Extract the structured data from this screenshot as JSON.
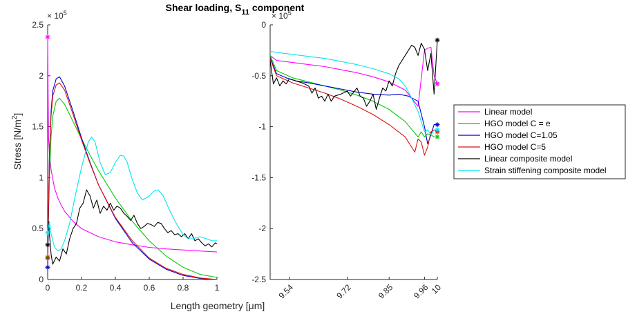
{
  "title": "Shear loading, S",
  "title_sub": "11",
  "title_tail": " component",
  "chart_data": [
    {
      "type": "line",
      "ylabel": "Stress [N/m",
      "ylabel_sup": "2",
      "ylabel_tail": "]",
      "xlabel": "Length geometry [",
      "xlabel_mu": "μ",
      "xlabel_tail": "m]",
      "xlim": [
        0,
        1
      ],
      "ylim": [
        0,
        250000
      ],
      "exponent_label": "× 10",
      "exponent_power": "5",
      "xticks": [
        0,
        0.2,
        0.4,
        0.6,
        0.8,
        1
      ],
      "xtick_labels": [
        "0",
        "0.2",
        "0.4",
        "0.6",
        "0.8",
        "1"
      ],
      "yticks": [
        0,
        50000,
        100000,
        150000,
        200000,
        250000
      ],
      "ytick_labels": [
        "0",
        "0.5",
        "1",
        "1.5",
        "2",
        "2.5"
      ],
      "series": [
        {
          "name": "Linear model",
          "color": "#ff00ff",
          "x": [
            0,
            0.005,
            0.01,
            0.02,
            0.04,
            0.06,
            0.08,
            0.1,
            0.15,
            0.2,
            0.3,
            0.4,
            0.5,
            0.6,
            0.7,
            0.8,
            0.9,
            1.0
          ],
          "y": [
            238000,
            140000,
            125000,
            108000,
            90000,
            80000,
            73000,
            67000,
            57000,
            50000,
            42000,
            37000,
            34000,
            31500,
            30000,
            29000,
            28000,
            27000
          ],
          "marker": [
            0,
            238000
          ]
        },
        {
          "name": "HGO model C = e",
          "color": "#00cc00",
          "x": [
            0,
            0.01,
            0.02,
            0.03,
            0.05,
            0.07,
            0.1,
            0.15,
            0.2,
            0.25,
            0.3,
            0.4,
            0.5,
            0.6,
            0.7,
            0.8,
            0.9,
            1.0
          ],
          "y": [
            22000,
            100000,
            140000,
            160000,
            175000,
            178000,
            172000,
            155000,
            138000,
            122000,
            107000,
            80000,
            57000,
            38000,
            23000,
            12000,
            5000,
            2000
          ],
          "marker": [
            0,
            22000
          ]
        },
        {
          "name": "HGO model C=1.05",
          "color": "#0000cc",
          "x": [
            0,
            0.01,
            0.02,
            0.03,
            0.05,
            0.07,
            0.1,
            0.15,
            0.2,
            0.25,
            0.3,
            0.4,
            0.5,
            0.6,
            0.7,
            0.8,
            0.9,
            1.0
          ],
          "y": [
            12000,
            120000,
            165000,
            185000,
            197000,
            199000,
            190000,
            165000,
            139000,
            115000,
            93000,
            60000,
            36000,
            20000,
            10000,
            4000,
            1000,
            0
          ],
          "marker": [
            0,
            12000
          ]
        },
        {
          "name": "HGO model C=5",
          "color": "#dd1111",
          "x": [
            0,
            0.01,
            0.02,
            0.03,
            0.05,
            0.07,
            0.1,
            0.15,
            0.2,
            0.25,
            0.3,
            0.4,
            0.5,
            0.6,
            0.7,
            0.8,
            0.9,
            1.0
          ],
          "y": [
            21000,
            118000,
            160000,
            180000,
            191000,
            193000,
            186000,
            162000,
            137000,
            114000,
            93000,
            61000,
            38000,
            21000,
            11000,
            5000,
            1500,
            0
          ],
          "marker": [
            0,
            21000
          ]
        },
        {
          "name": "Linear composite model",
          "color": "#000000",
          "x": [
            0,
            0.005,
            0.01,
            0.02,
            0.03,
            0.05,
            0.07,
            0.09,
            0.11,
            0.13,
            0.15,
            0.17,
            0.19,
            0.21,
            0.23,
            0.25,
            0.27,
            0.29,
            0.31,
            0.33,
            0.35,
            0.37,
            0.39,
            0.41,
            0.43,
            0.45,
            0.47,
            0.49,
            0.51,
            0.53,
            0.55,
            0.57,
            0.59,
            0.61,
            0.63,
            0.65,
            0.67,
            0.69,
            0.71,
            0.73,
            0.75,
            0.77,
            0.79,
            0.81,
            0.83,
            0.85,
            0.87,
            0.89,
            0.91,
            0.93,
            0.95,
            0.97,
            0.99,
            1.0
          ],
          "y": [
            34000,
            57000,
            45000,
            25000,
            15000,
            22000,
            18000,
            30000,
            25000,
            40000,
            50000,
            55000,
            70000,
            75000,
            88000,
            82000,
            70000,
            78000,
            65000,
            72000,
            68000,
            75000,
            68000,
            72000,
            70000,
            65000,
            62000,
            58000,
            63000,
            55000,
            50000,
            52000,
            55000,
            54000,
            52000,
            56000,
            55000,
            50000,
            46000,
            48000,
            44000,
            45000,
            42000,
            45000,
            40000,
            45000,
            38000,
            40000,
            36000,
            33000,
            35000,
            32000,
            36000,
            35000
          ],
          "marker": [
            0,
            34000
          ]
        },
        {
          "name": "Strain stiffening composite model",
          "color": "#00e5ee",
          "x": [
            0,
            0.01,
            0.02,
            0.04,
            0.06,
            0.08,
            0.1,
            0.13,
            0.16,
            0.2,
            0.24,
            0.26,
            0.28,
            0.31,
            0.34,
            0.37,
            0.4,
            0.43,
            0.45,
            0.47,
            0.5,
            0.53,
            0.56,
            0.6,
            0.63,
            0.65,
            0.68,
            0.72,
            0.76,
            0.8,
            0.83,
            0.86,
            0.9,
            0.94,
            0.97,
            1.0
          ],
          "y": [
            46000,
            57000,
            45000,
            32000,
            28000,
            30000,
            38000,
            55000,
            80000,
            110000,
            135000,
            140000,
            135000,
            115000,
            103000,
            105000,
            115000,
            122000,
            121000,
            115000,
            98000,
            85000,
            78000,
            82000,
            87000,
            88000,
            83000,
            68000,
            55000,
            44000,
            40000,
            40000,
            42000,
            40000,
            38000,
            38000
          ],
          "marker": [
            0,
            46000
          ]
        }
      ]
    },
    {
      "type": "line",
      "xlim": [
        9.48,
        10.0
      ],
      "ylim": [
        -250000,
        0
      ],
      "exponent_label": "× 10",
      "exponent_power": "5",
      "xticks": [
        9.54,
        9.72,
        9.85,
        9.96,
        10.0
      ],
      "xtick_labels": [
        "9.54",
        "9.72",
        "9.85",
        "9.96",
        "10"
      ],
      "yticks": [
        -250000,
        -200000,
        -150000,
        -100000,
        -50000,
        0
      ],
      "ytick_labels": [
        "-2.5",
        "-2",
        "-1.5",
        "-1",
        "-0.5",
        "0"
      ],
      "series": [
        {
          "name": "Linear model",
          "color": "#ff00ff",
          "x": [
            9.48,
            9.5,
            9.55,
            9.6,
            9.65,
            9.7,
            9.75,
            9.8,
            9.85,
            9.9,
            9.94,
            9.96,
            9.97,
            9.98,
            9.99,
            10.0
          ],
          "y": [
            -30000,
            -35000,
            -37000,
            -39000,
            -41000,
            -44000,
            -47000,
            -51000,
            -56000,
            -64000,
            -80000,
            -25000,
            -23000,
            -22000,
            -50000,
            -58000
          ],
          "marker": [
            10.0,
            -58000
          ]
        },
        {
          "name": "HGO model C = e",
          "color": "#00cc00",
          "x": [
            9.48,
            9.5,
            9.55,
            9.6,
            9.65,
            9.7,
            9.75,
            9.8,
            9.85,
            9.9,
            9.94,
            9.95,
            9.96,
            9.97,
            9.98,
            9.99,
            10.0
          ],
          "y": [
            -30000,
            -45000,
            -52000,
            -56000,
            -60000,
            -64000,
            -69000,
            -75000,
            -83000,
            -95000,
            -110000,
            -105000,
            -110000,
            -107000,
            -108000,
            -110000,
            -110000
          ],
          "marker": [
            10.0,
            -110000
          ]
        },
        {
          "name": "HGO model C=1.05",
          "color": "#0000cc",
          "x": [
            9.48,
            9.5,
            9.53,
            9.56,
            9.6,
            9.65,
            9.7,
            9.75,
            9.8,
            9.85,
            9.88,
            9.91,
            9.94,
            9.96,
            9.97,
            9.98,
            9.99,
            10.0
          ],
          "y": [
            -32000,
            -48000,
            -52000,
            -55000,
            -57000,
            -60000,
            -63000,
            -66000,
            -68000,
            -69000,
            -68000,
            -70000,
            -75000,
            -100000,
            -117000,
            -108000,
            -98000,
            -98000
          ],
          "marker": [
            10.0,
            -98000
          ]
        },
        {
          "name": "HGO model C=5",
          "color": "#dd1111",
          "x": [
            9.48,
            9.5,
            9.55,
            9.6,
            9.65,
            9.7,
            9.75,
            9.8,
            9.85,
            9.9,
            9.93,
            9.94,
            9.95,
            9.96,
            9.97,
            9.98,
            9.99,
            10.0
          ],
          "y": [
            -33000,
            -50000,
            -57000,
            -62000,
            -67000,
            -73000,
            -80000,
            -88000,
            -98000,
            -110000,
            -125000,
            -112000,
            -115000,
            -128000,
            -120000,
            -105000,
            -103000,
            -105000
          ],
          "marker": [
            10.0,
            -105000
          ]
        },
        {
          "name": "Linear composite model",
          "color": "#000000",
          "x": [
            9.48,
            9.49,
            9.5,
            9.51,
            9.52,
            9.53,
            9.54,
            9.56,
            9.58,
            9.6,
            9.61,
            9.62,
            9.63,
            9.64,
            9.65,
            9.66,
            9.67,
            9.68,
            9.7,
            9.72,
            9.73,
            9.75,
            9.76,
            9.77,
            9.78,
            9.79,
            9.8,
            9.81,
            9.82,
            9.83,
            9.84,
            9.85,
            9.86,
            9.87,
            9.88,
            9.89,
            9.9,
            9.91,
            9.92,
            9.93,
            9.94,
            9.95,
            9.96,
            9.97,
            9.98,
            9.99,
            10.0
          ],
          "y": [
            -35000,
            -58000,
            -52000,
            -60000,
            -55000,
            -58000,
            -53000,
            -55000,
            -57000,
            -60000,
            -67000,
            -62000,
            -72000,
            -70000,
            -75000,
            -68000,
            -75000,
            -70000,
            -68000,
            -65000,
            -70000,
            -62000,
            -70000,
            -72000,
            -80000,
            -75000,
            -68000,
            -83000,
            -72000,
            -62000,
            -65000,
            -55000,
            -60000,
            -48000,
            -40000,
            -35000,
            -30000,
            -25000,
            -20000,
            -22000,
            -30000,
            -18000,
            -24000,
            -45000,
            -28000,
            -68000,
            -15000
          ],
          "marker": [
            10.0,
            -15000
          ]
        },
        {
          "name": "Strain stiffening composite model",
          "color": "#00e5ee",
          "x": [
            9.48,
            9.5,
            9.55,
            9.6,
            9.65,
            9.7,
            9.75,
            9.8,
            9.85,
            9.88,
            9.9,
            9.92,
            9.94,
            9.95,
            9.96,
            9.97,
            9.98,
            9.99,
            10.0
          ],
          "y": [
            -26000,
            -27000,
            -29000,
            -31000,
            -33000,
            -36000,
            -39000,
            -43000,
            -48000,
            -53000,
            -60000,
            -72000,
            -85000,
            -95000,
            -105000,
            -103000,
            -108000,
            -103000,
            -103000
          ],
          "marker": [
            10.0,
            -103000
          ]
        }
      ]
    }
  ],
  "legend": {
    "placement": "right",
    "items": [
      {
        "label": "Linear model",
        "color": "#ff00ff"
      },
      {
        "label": "HGO model C = e",
        "color": "#00cc00"
      },
      {
        "label": "HGO model C=1.05",
        "color": "#0000cc"
      },
      {
        "label": "HGO model C=5",
        "color": "#dd1111"
      },
      {
        "label": "Linear composite model",
        "color": "#000000"
      },
      {
        "label": "Strain stiffening composite model",
        "color": "#00e5ee"
      }
    ]
  }
}
